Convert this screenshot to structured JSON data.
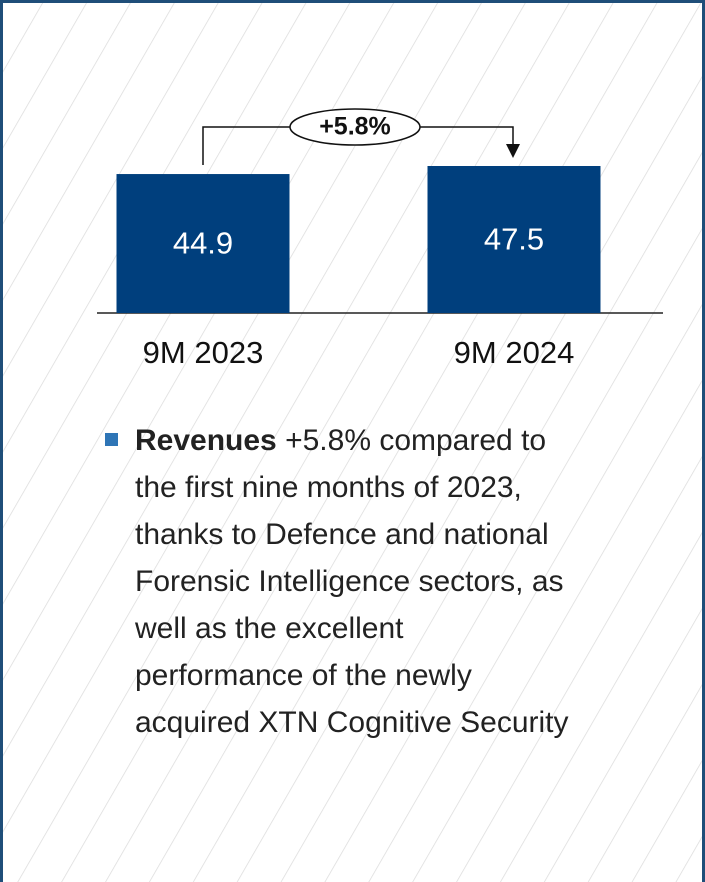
{
  "chart_data": {
    "type": "bar",
    "categories": [
      "9M 2023",
      "9M 2024"
    ],
    "values": [
      44.9,
      47.5
    ],
    "color": "#003f7d",
    "annotation": "+5.8%"
  },
  "bullet": {
    "bold": "Revenues",
    "lines": [
      "+5.8% compared to",
      "the first nine months of 2023,",
      "thanks to Defence and national",
      "Forensic Intelligence sectors, as",
      "well as the excellent",
      "performance of the newly",
      "acquired XTN Cognitive Security"
    ]
  }
}
